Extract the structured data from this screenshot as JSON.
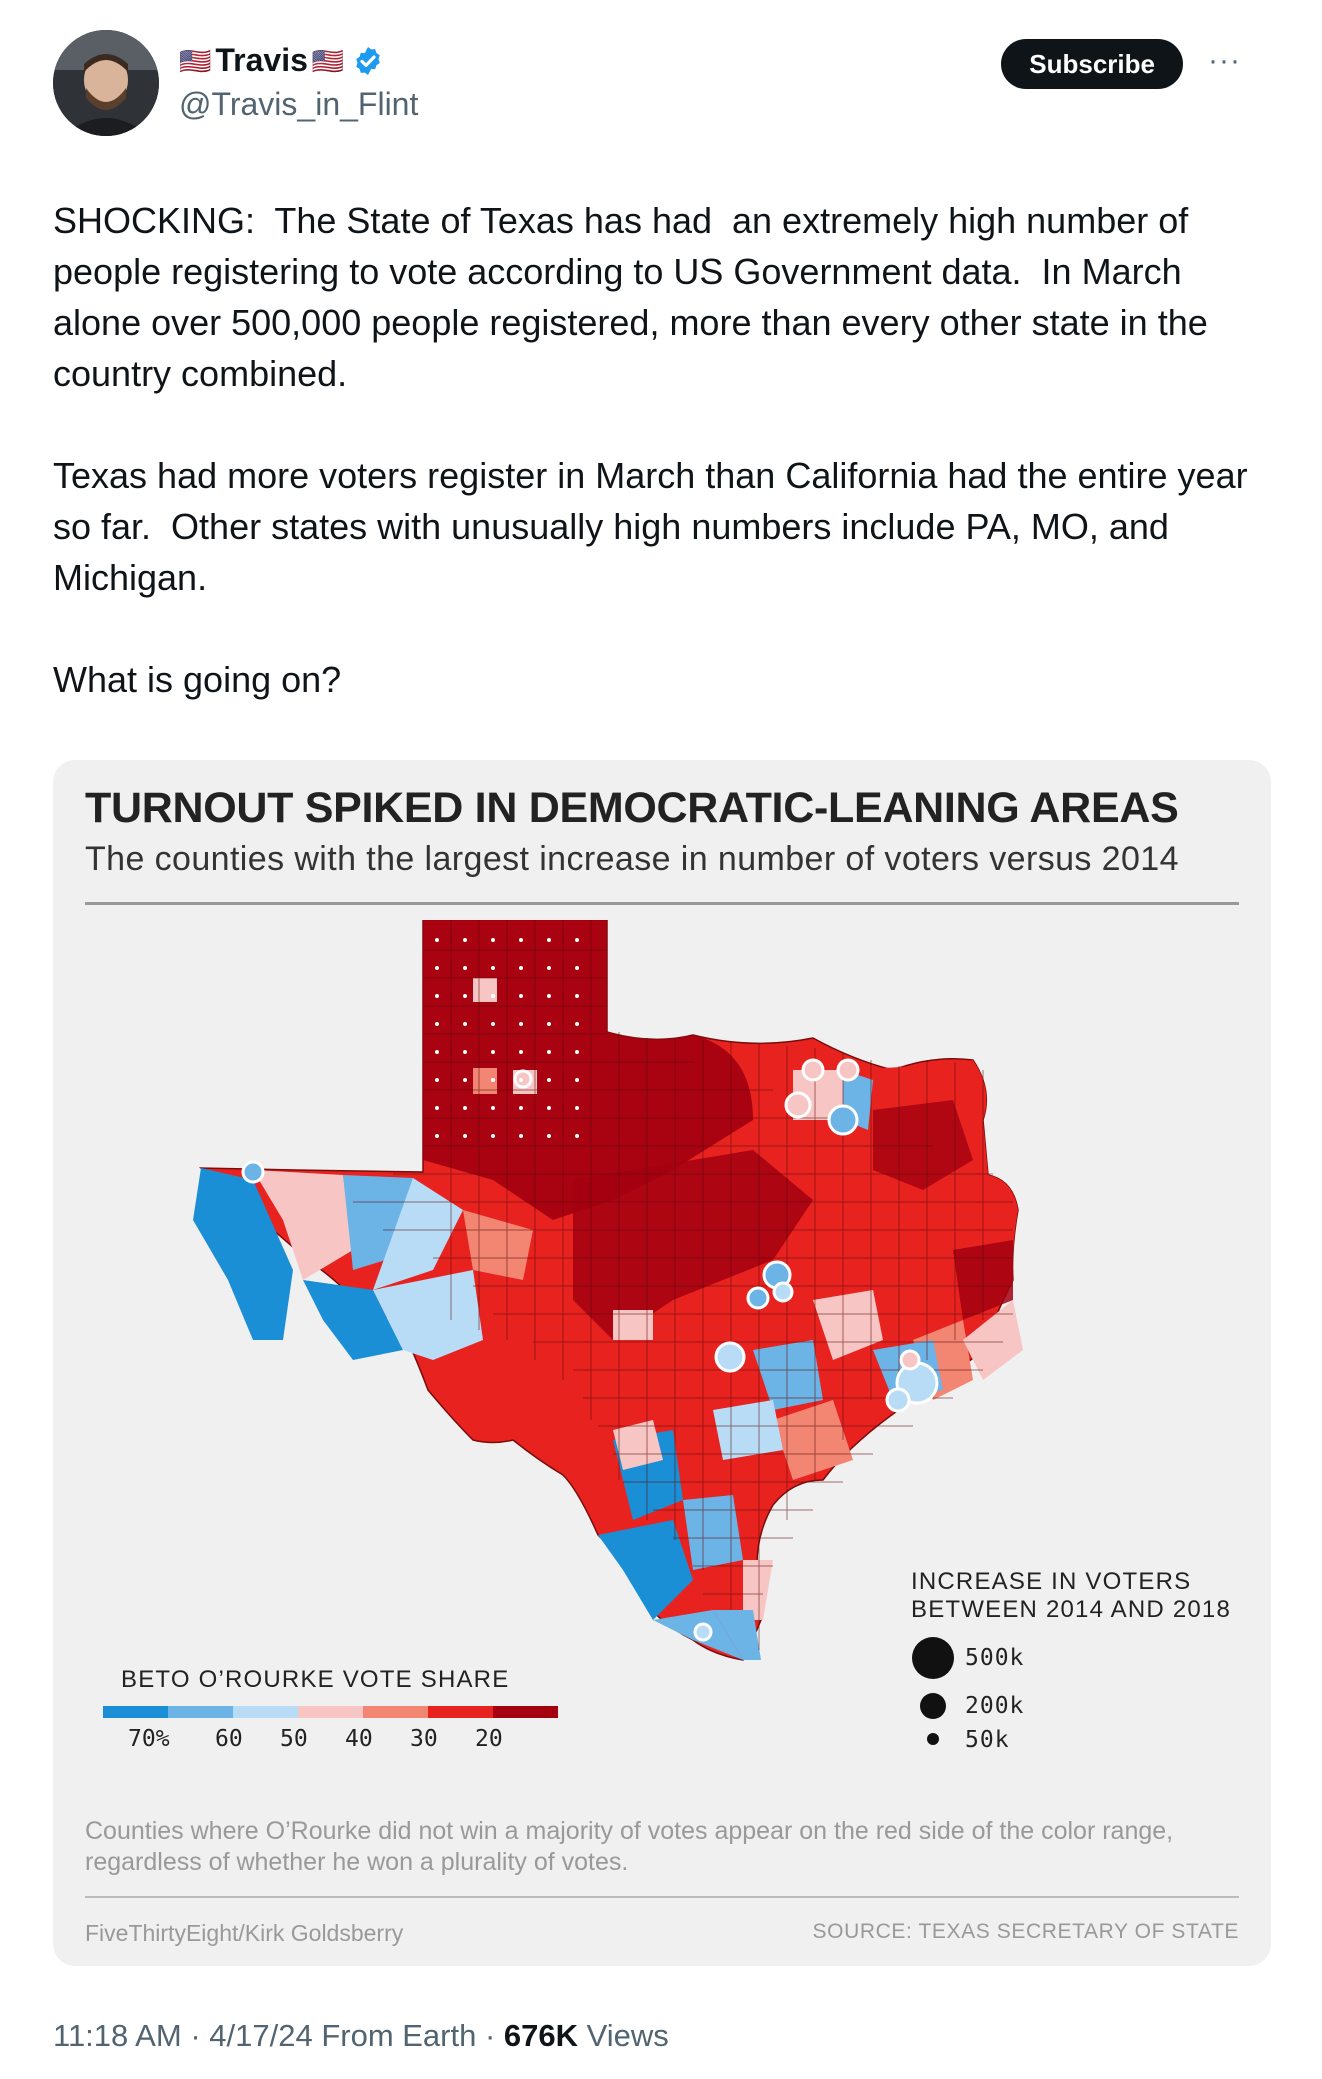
{
  "author": {
    "name": "Travis",
    "flag_left": "🇺🇸",
    "flag_right": "🇺🇸",
    "handle": "@Travis_in_Flint",
    "verified": true,
    "avatar_icon": "profile-photo"
  },
  "actions": {
    "subscribe_label": "Subscribe",
    "more_icon": "···"
  },
  "tweet": {
    "text": "SHOCKING:  The State of Texas has had  an extremely high number of people registering to vote according to US Government data.  In March alone over 500,000 people registered, more than every other state in the country combined.\n\nTexas had more voters register in March than California had the entire year so far.  Other states with unusually high numbers include PA, MO, and Michigan.\n\nWhat is going on?"
  },
  "card": {
    "title": "TURNOUT SPIKED IN DEMOCRATIC-LEANING AREAS",
    "subtitle": "The counties with the largest increase in number of voters versus 2014",
    "vote_legend_title": "BETO O’ROURKE VOTE SHARE",
    "vote_colors": [
      "#1b8fd6",
      "#6cb3e6",
      "#b8dcf6",
      "#f7c6c4",
      "#f28672",
      "#e8231f",
      "#a30010"
    ],
    "vote_ticks": [
      "70%",
      "60",
      "50",
      "40",
      "30",
      "20"
    ],
    "size_legend_title_1": "INCREASE IN VOTERS",
    "size_legend_title_2": "BETWEEN 2014 AND 2018",
    "size_legend": [
      "500k",
      "200k",
      "50k"
    ],
    "footnote": "Counties where O’Rourke did not win a majority of votes appear on the red side of the color range, regardless of whether he won a plurality of votes.",
    "credit": "FiveThirtyEight/Kirk Goldsberry",
    "source": "SOURCE: TEXAS SECRETARY OF STATE"
  },
  "meta": {
    "time": "11:18 AM",
    "date": "4/17/24",
    "location": "From Earth",
    "views_count": "676K",
    "views_label": "Views"
  }
}
